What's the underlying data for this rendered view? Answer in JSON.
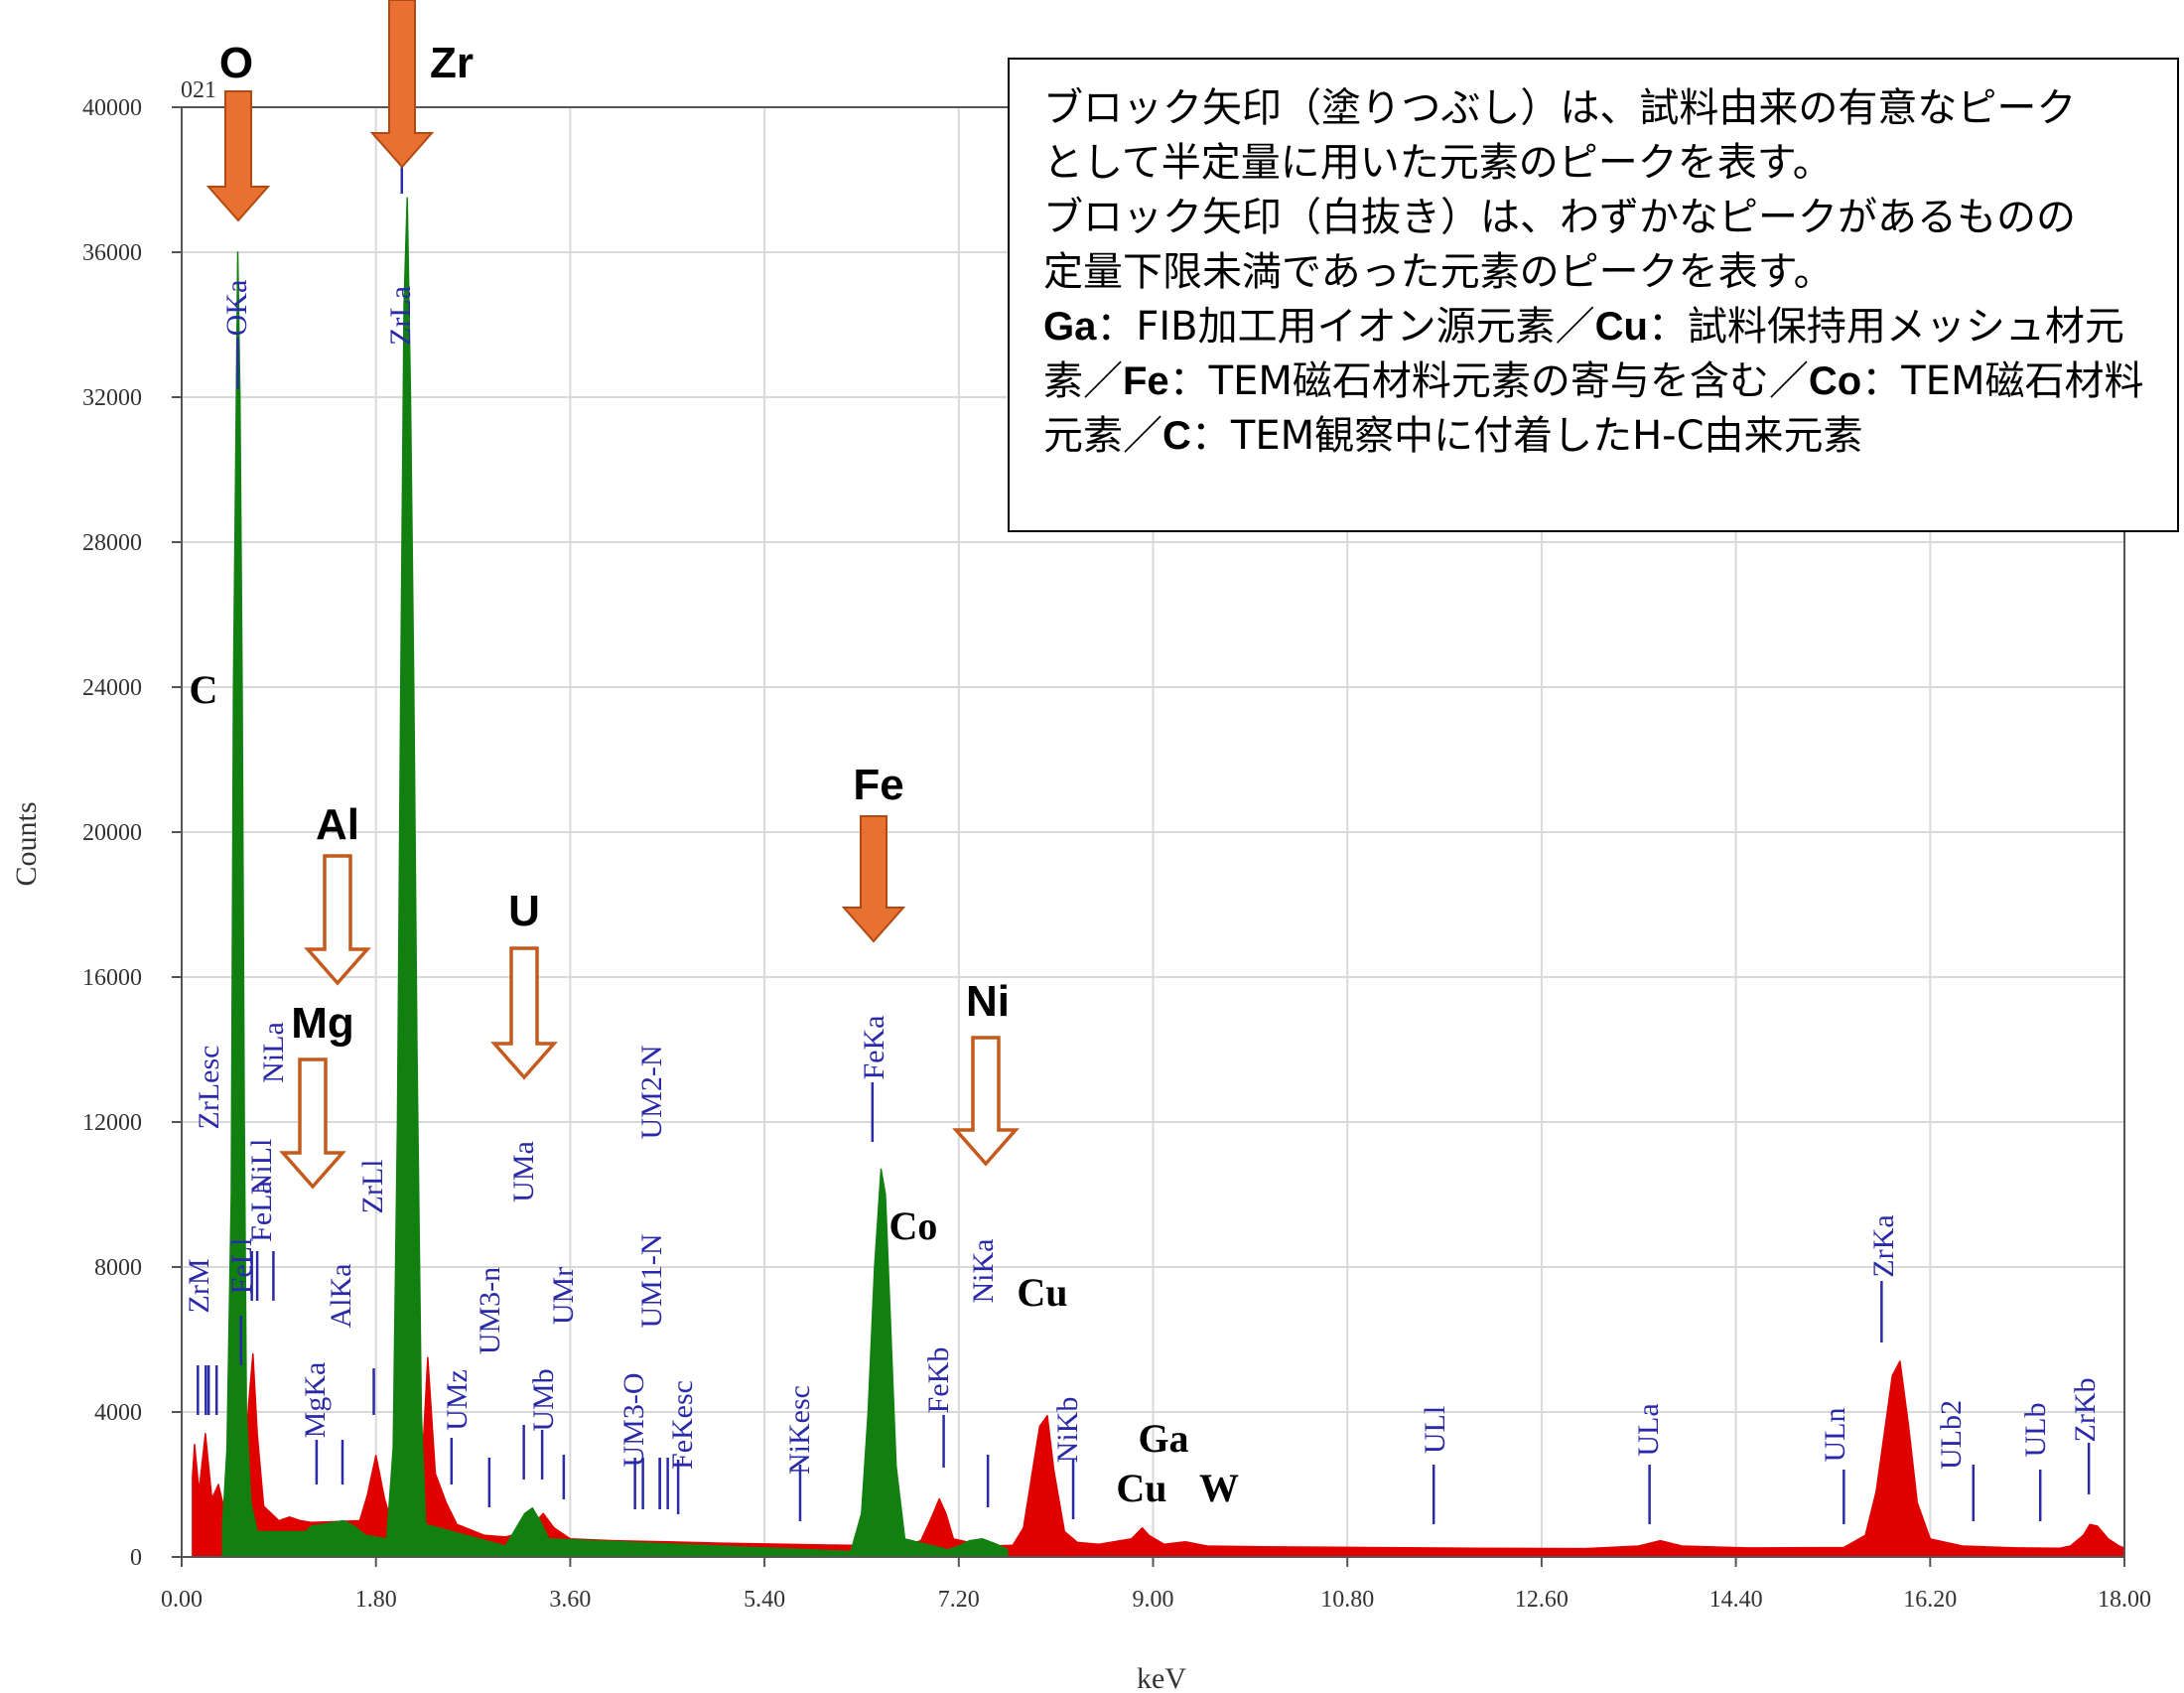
{
  "chart_data": {
    "type": "area",
    "xlabel": "keV",
    "ylabel": "Counts",
    "xlim": [
      0,
      18
    ],
    "ylim": [
      0,
      40000
    ],
    "x_ticks": [
      "0.00",
      "1.80",
      "3.60",
      "5.40",
      "7.20",
      "9.00",
      "10.80",
      "12.60",
      "14.40",
      "16.20",
      "18.00"
    ],
    "y_ticks": [
      "0",
      "4000",
      "8000",
      "12000",
      "16000",
      "20000",
      "24000",
      "28000",
      "32000",
      "36000",
      "40000"
    ],
    "grid": true,
    "corner_label": "021",
    "series": [
      {
        "color": "#e00000",
        "points": [
          [
            0.1,
            2200
          ],
          [
            0.12,
            3100
          ],
          [
            0.16,
            1800
          ],
          [
            0.22,
            3400
          ],
          [
            0.28,
            1600
          ],
          [
            0.34,
            2000
          ],
          [
            0.38,
            1500
          ],
          [
            0.56,
            1200
          ],
          [
            0.62,
            4200
          ],
          [
            0.66,
            5600
          ],
          [
            0.7,
            3400
          ],
          [
            0.76,
            1400
          ],
          [
            0.9,
            1000
          ],
          [
            1.0,
            1100
          ],
          [
            1.1,
            1000
          ],
          [
            1.2,
            950
          ],
          [
            1.65,
            1000
          ],
          [
            1.72,
            1700
          ],
          [
            1.8,
            2800
          ],
          [
            1.88,
            1600
          ],
          [
            1.95,
            900
          ],
          [
            2.22,
            2100
          ],
          [
            2.28,
            5500
          ],
          [
            2.35,
            2300
          ],
          [
            2.45,
            1500
          ],
          [
            2.55,
            900
          ],
          [
            2.8,
            600
          ],
          [
            3.0,
            550
          ],
          [
            3.2,
            700
          ],
          [
            3.35,
            1200
          ],
          [
            3.45,
            800
          ],
          [
            3.6,
            500
          ],
          [
            4.0,
            450
          ],
          [
            4.5,
            420
          ],
          [
            5.0,
            380
          ],
          [
            5.4,
            360
          ],
          [
            6.0,
            330
          ],
          [
            6.2,
            320
          ],
          [
            6.45,
            300
          ],
          [
            6.7,
            300
          ],
          [
            6.85,
            450
          ],
          [
            6.95,
            1100
          ],
          [
            7.02,
            1600
          ],
          [
            7.08,
            1200
          ],
          [
            7.15,
            500
          ],
          [
            7.45,
            300
          ],
          [
            7.7,
            320
          ],
          [
            7.8,
            800
          ],
          [
            7.88,
            2300
          ],
          [
            7.95,
            3600
          ],
          [
            8.02,
            3900
          ],
          [
            8.08,
            2400
          ],
          [
            8.18,
            700
          ],
          [
            8.3,
            400
          ],
          [
            8.5,
            350
          ],
          [
            8.8,
            500
          ],
          [
            8.9,
            800
          ],
          [
            8.96,
            600
          ],
          [
            9.1,
            350
          ],
          [
            9.3,
            420
          ],
          [
            9.5,
            300
          ],
          [
            10.0,
            280
          ],
          [
            11.0,
            260
          ],
          [
            12.0,
            240
          ],
          [
            13.0,
            230
          ],
          [
            13.5,
            300
          ],
          [
            13.7,
            450
          ],
          [
            13.9,
            300
          ],
          [
            14.5,
            250
          ],
          [
            15.4,
            260
          ],
          [
            15.6,
            600
          ],
          [
            15.7,
            1800
          ],
          [
            15.78,
            3500
          ],
          [
            15.85,
            5000
          ],
          [
            15.92,
            5400
          ],
          [
            16.0,
            3600
          ],
          [
            16.08,
            1500
          ],
          [
            16.2,
            500
          ],
          [
            16.5,
            300
          ],
          [
            17.0,
            250
          ],
          [
            17.4,
            240
          ],
          [
            17.5,
            300
          ],
          [
            17.62,
            600
          ],
          [
            17.68,
            900
          ],
          [
            17.75,
            850
          ],
          [
            17.85,
            500
          ],
          [
            17.95,
            300
          ],
          [
            18.0,
            250
          ]
        ]
      },
      {
        "color": "#118011",
        "points": [
          [
            0.38,
            900
          ],
          [
            0.42,
            3000
          ],
          [
            0.46,
            10000
          ],
          [
            0.48,
            24000
          ],
          [
            0.5,
            30000
          ],
          [
            0.52,
            36000
          ],
          [
            0.54,
            32000
          ],
          [
            0.56,
            24000
          ],
          [
            0.58,
            12000
          ],
          [
            0.6,
            4000
          ],
          [
            0.64,
            1500
          ],
          [
            0.7,
            700
          ],
          [
            1.15,
            700
          ],
          [
            1.2,
            850
          ],
          [
            1.3,
            900
          ],
          [
            1.4,
            950
          ],
          [
            1.5,
            1000
          ],
          [
            1.6,
            850
          ],
          [
            1.7,
            600
          ],
          [
            1.9,
            500
          ],
          [
            1.96,
            3000
          ],
          [
            2.0,
            12000
          ],
          [
            2.03,
            24000
          ],
          [
            2.06,
            34500
          ],
          [
            2.09,
            37500
          ],
          [
            2.12,
            32000
          ],
          [
            2.15,
            24000
          ],
          [
            2.18,
            14000
          ],
          [
            2.22,
            4000
          ],
          [
            2.26,
            900
          ],
          [
            3.0,
            300
          ],
          [
            3.1,
            800
          ],
          [
            3.18,
            1200
          ],
          [
            3.25,
            1350
          ],
          [
            3.32,
            1000
          ],
          [
            3.4,
            500
          ],
          [
            6.2,
            150
          ],
          [
            6.3,
            1200
          ],
          [
            6.36,
            4000
          ],
          [
            6.42,
            8000
          ],
          [
            6.48,
            10700
          ],
          [
            6.52,
            10000
          ],
          [
            6.56,
            7000
          ],
          [
            6.62,
            2500
          ],
          [
            6.7,
            500
          ],
          [
            7.1,
            200
          ],
          [
            7.2,
            300
          ],
          [
            7.3,
            450
          ],
          [
            7.42,
            500
          ],
          [
            7.55,
            350
          ],
          [
            7.65,
            200
          ]
        ]
      }
    ],
    "peak_markers": [
      {
        "text": "ZrM",
        "x": 0.15,
        "line_top": 1120
      },
      {
        "text": "ZrLesc",
        "x": 0.25,
        "line_top": 0
      },
      {
        "text": "FeLl",
        "x": 0.55,
        "line_top": 0
      },
      {
        "text": "NiLl",
        "x": 0.65,
        "line_top": 0
      },
      {
        "text": "FeLa",
        "x": 0.7,
        "line_top": 0
      },
      {
        "text": "NiLa",
        "x": 0.85,
        "line_top": 0
      },
      {
        "text": "OKa",
        "x": 0.52,
        "line_top": 0
      },
      {
        "text": "MgKa",
        "x": 1.25,
        "line_top": 1150
      },
      {
        "text": "AlKa",
        "x": 1.49,
        "line_top": 1150
      },
      {
        "text": "ZrLl",
        "x": 1.78,
        "line_top": 0
      },
      {
        "text": "ZrLa",
        "x": 2.04,
        "line_top": 0
      },
      {
        "text": "UMz",
        "x": 2.5,
        "line_top": 0
      },
      {
        "text": "UM3-n",
        "x": 2.85,
        "line_top": 0
      },
      {
        "text": "UMa",
        "x": 3.17,
        "line_top": 0
      },
      {
        "text": "UMb",
        "x": 3.34,
        "line_top": 0
      },
      {
        "text": "UMr",
        "x": 3.54,
        "line_top": 0
      },
      {
        "text": "UM3-O",
        "x": 4.2,
        "line_top": 0
      },
      {
        "text": "UM1-N",
        "x": 4.43,
        "line_top": 0
      },
      {
        "text": "UM2-N",
        "x": 4.43,
        "line_top": 0
      },
      {
        "text": "FeKesc",
        "x": 4.6,
        "line_top": 0
      },
      {
        "text": "NiKesc",
        "x": 5.73,
        "line_top": 0
      },
      {
        "text": "FeKa",
        "x": 6.4,
        "line_top": 0
      },
      {
        "text": "FeKb",
        "x": 7.06,
        "line_top": 0
      },
      {
        "text": "NiKa",
        "x": 7.47,
        "line_top": 0
      },
      {
        "text": "NiKb",
        "x": 8.26,
        "line_top": 0
      },
      {
        "text": "ULl",
        "x": 11.6,
        "line_top": 0
      },
      {
        "text": "ULa",
        "x": 13.6,
        "line_top": 0
      },
      {
        "text": "ULn",
        "x": 15.4,
        "line_top": 0
      },
      {
        "text": "ZrKa",
        "x": 15.75,
        "line_top": 0
      },
      {
        "text": "ULb2",
        "x": 16.6,
        "line_top": 0
      },
      {
        "text": "ULb",
        "x": 17.22,
        "line_top": 0
      },
      {
        "text": "ZrKb",
        "x": 17.67,
        "line_top": 0
      }
    ],
    "element_labels": [
      {
        "text": "O",
        "style": "bold"
      },
      {
        "text": "Zr",
        "style": "bold"
      },
      {
        "text": "C",
        "style": "serif"
      },
      {
        "text": "Al",
        "style": "bold"
      },
      {
        "text": "Mg",
        "style": "bold"
      },
      {
        "text": "U",
        "style": "bold"
      },
      {
        "text": "Fe",
        "style": "bold"
      },
      {
        "text": "Ni",
        "style": "bold"
      },
      {
        "text": "Co",
        "style": "serif"
      },
      {
        "text": "Cu",
        "style": "serif"
      },
      {
        "text": "Ga",
        "style": "serif"
      },
      {
        "text": "Cu",
        "style": "serif"
      },
      {
        "text": "W",
        "style": "serif"
      }
    ],
    "arrows": [
      {
        "element": "O",
        "type": "filled",
        "color": "#e87030"
      },
      {
        "element": "Zr",
        "type": "filled",
        "color": "#e87030"
      },
      {
        "element": "Fe",
        "type": "filled",
        "color": "#e87030"
      },
      {
        "element": "Al",
        "type": "hollow",
        "color": "#c45a1c"
      },
      {
        "element": "Mg",
        "type": "hollow",
        "color": "#c45a1c"
      },
      {
        "element": "U",
        "type": "hollow",
        "color": "#c45a1c"
      },
      {
        "element": "Ni",
        "type": "hollow",
        "color": "#c45a1c"
      }
    ]
  },
  "legend": {
    "line1": "ブロック矢印（塗りつぶし）は、試料由来の有意なピーク",
    "line2": "として半定量に用いた元素のピークを表す。",
    "line3": "ブロック矢印（白抜き）は、わずかなピークがあるものの",
    "line4": "定量下限未満であった元素のピークを表す。",
    "ga": "Ga",
    "ga_text": "：FIB加工用イオン源元素／",
    "cu": "Cu",
    "cu_text": "：試料保持用メッシュ材元素／",
    "fe": "Fe",
    "fe_text": "：TEM磁石材料元素の寄与を含む／",
    "co": "Co",
    "co_text": "：TEM磁石材料元素／",
    "c": "C",
    "c_text": "：TEM観察中に付着したH-C由来元素"
  }
}
